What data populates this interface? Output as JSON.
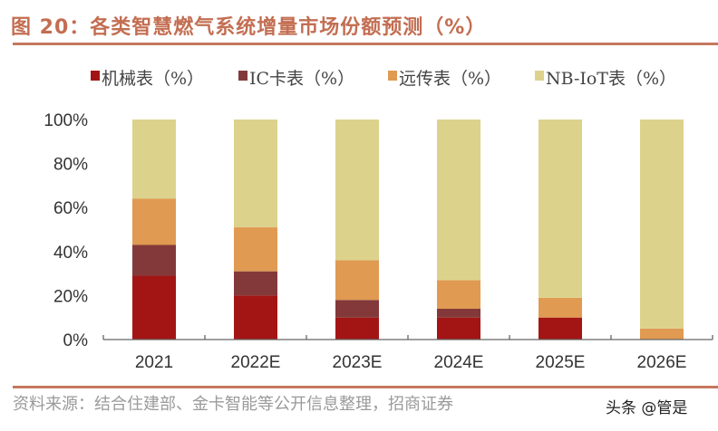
{
  "title": "图 20：各类智慧燃气系统增量市场份额预测（%）",
  "source": "资料来源：结合住建部、金卡智能等公开信息整理，招商证券",
  "watermark": "头条 @管是",
  "chart_data": {
    "type": "bar",
    "stacked": true,
    "title": "",
    "categories": [
      "2021",
      "2022E",
      "2023E",
      "2024E",
      "2025E",
      "2026E"
    ],
    "series": [
      {
        "name": "机械表（%）",
        "color": "#a31515",
        "values": [
          29,
          20,
          10,
          10,
          10,
          0
        ]
      },
      {
        "name": "IC卡表（%）",
        "color": "#833939",
        "values": [
          14,
          11,
          8,
          4,
          0,
          0
        ]
      },
      {
        "name": "远传表（%）",
        "color": "#e09a52",
        "values": [
          21,
          20,
          18,
          13,
          9,
          5
        ]
      },
      {
        "name": "NB-IoT表（%）",
        "color": "#dcd28c",
        "values": [
          36,
          49,
          64,
          73,
          81,
          95
        ]
      }
    ],
    "ylim": [
      0,
      100
    ],
    "yticks": [
      "0%",
      "20%",
      "40%",
      "60%",
      "80%",
      "100%"
    ],
    "ytick_values": [
      0,
      20,
      40,
      60,
      80,
      100
    ],
    "grid": false,
    "legend": "top"
  }
}
